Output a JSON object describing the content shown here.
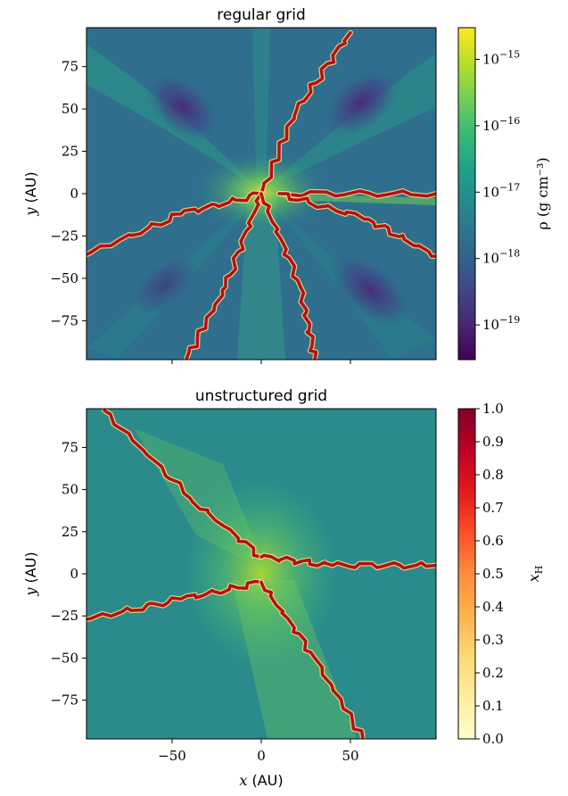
{
  "chart_data": [
    {
      "type": "heatmap",
      "title": "regular grid",
      "xlabel": "",
      "ylabel_var": "y",
      "ylabel_unit": "(AU)",
      "xlim": [
        -98,
        98
      ],
      "ylim": [
        -98,
        98
      ],
      "xticks": [
        -50,
        0,
        50
      ],
      "yticks": [
        75,
        50,
        25,
        0,
        -25,
        -50,
        -75
      ],
      "ytick_labels": [
        "75",
        "50",
        "25",
        "0",
        "−25",
        "−50",
        "−75"
      ],
      "colorbar": {
        "label": "ρ (g cm⁻³)",
        "scale": "log",
        "range": [
          3e-20,
          3e-15
        ],
        "ticks": [
          {
            "exp": "−15",
            "value": 1e-15
          },
          {
            "exp": "−16",
            "value": 1e-16
          },
          {
            "exp": "−17",
            "value": 1e-17
          },
          {
            "exp": "−18",
            "value": 1e-18
          },
          {
            "exp": "−19",
            "value": 1e-19
          }
        ],
        "base": "10",
        "colormap": "viridis"
      },
      "ionization_front": {
        "color": "#b0111b",
        "branches": [
          [
            [
              0,
              0
            ],
            [
              20,
              50
            ],
            [
              50,
              95
            ]
          ],
          [
            [
              0,
              0
            ],
            [
              -45,
              -12
            ],
            [
              -98,
              -36
            ]
          ],
          [
            [
              0,
              0
            ],
            [
              -20,
              -55
            ],
            [
              -42,
              -98
            ]
          ],
          [
            [
              0,
              0
            ],
            [
              22,
              -55
            ],
            [
              30,
              -98
            ]
          ],
          [
            [
              10,
              0
            ],
            [
              98,
              0
            ]
          ],
          [
            [
              10,
              0
            ],
            [
              60,
              -15
            ],
            [
              98,
              -37
            ]
          ]
        ]
      }
    },
    {
      "type": "heatmap",
      "title": "unstructured grid",
      "xlabel_var": "x",
      "xlabel_unit": "(AU)",
      "ylabel_var": "y",
      "ylabel_unit": "(AU)",
      "xlim": [
        -98,
        98
      ],
      "ylim": [
        -98,
        98
      ],
      "xticks": [
        -50,
        0,
        50
      ],
      "xtick_labels": [
        "−50",
        "0",
        "50"
      ],
      "yticks": [
        75,
        50,
        25,
        0,
        -25,
        -50,
        -75
      ],
      "ytick_labels": [
        "75",
        "50",
        "25",
        "0",
        "−25",
        "−50",
        "−75"
      ],
      "colorbar": {
        "label_var": "x",
        "label_sub": "H",
        "scale": "linear",
        "range": [
          0,
          1
        ],
        "ticks": [
          "1.0",
          "0.9",
          "0.8",
          "0.7",
          "0.6",
          "0.5",
          "0.4",
          "0.3",
          "0.2",
          "0.1",
          "0.0"
        ],
        "colormap": "YlOrRd"
      },
      "ionization_front": {
        "color": "#b0111b",
        "branches": [
          [
            [
              -88,
              97
            ],
            [
              -40,
              45
            ],
            [
              0,
              10
            ]
          ],
          [
            [
              0,
              10
            ],
            [
              40,
              5
            ],
            [
              98,
              5
            ]
          ],
          [
            [
              -98,
              -27
            ],
            [
              -45,
              -15
            ],
            [
              0,
              -5
            ]
          ],
          [
            [
              0,
              -5
            ],
            [
              30,
              -50
            ],
            [
              57,
              -98
            ]
          ]
        ]
      }
    }
  ],
  "colors": {
    "viridis": [
      "#440154",
      "#482878",
      "#3e4989",
      "#31688e",
      "#26828e",
      "#1f9e89",
      "#35b779",
      "#6ece58",
      "#b5de2b",
      "#fde725"
    ],
    "ylorrd": [
      "#ffffcc",
      "#ffeda0",
      "#fed976",
      "#feb24c",
      "#fd8d3c",
      "#fc4e2a",
      "#e31a1c",
      "#bd0026",
      "#800026"
    ],
    "background_top": "#2d7a8c",
    "background_bottom": "#2a8a8c"
  }
}
